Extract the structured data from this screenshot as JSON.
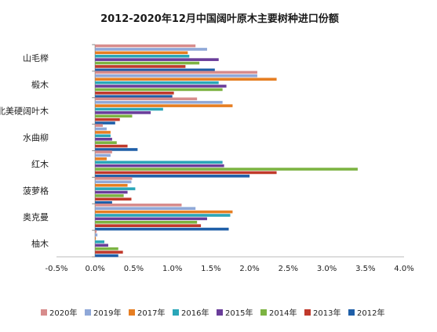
{
  "chart_data": {
    "type": "bar",
    "orientation": "horizontal",
    "title": "2012-2020年12月中国阔叶原木主要树种进口份额",
    "xlabel": "",
    "ylabel": "",
    "xlim": [
      -0.5,
      4.0
    ],
    "xticks": [
      "-0.5%",
      "0.0%",
      "0.5%",
      "1.0%",
      "1.5%",
      "2.0%",
      "2.5%",
      "3.0%",
      "3.5%",
      "4.0%"
    ],
    "grid": false,
    "legend_position": "bottom",
    "categories": [
      "山毛榉",
      "椴木",
      "北美硬阔叶木",
      "水曲柳",
      "红木",
      "菠萝格",
      "奥克曼",
      "柚木"
    ],
    "series": [
      {
        "name": "2020年",
        "color": "#d78c8c",
        "values": [
          1.3,
          2.1,
          1.32,
          0.1,
          0.22,
          0.48,
          1.12,
          0.02
        ]
      },
      {
        "name": "2019年",
        "color": "#8fa8d8",
        "values": [
          1.45,
          2.1,
          1.65,
          0.15,
          0.2,
          0.47,
          1.3,
          0.03
        ]
      },
      {
        "name": "2017年",
        "color": "#e67e22",
        "values": [
          1.2,
          2.35,
          1.78,
          0.2,
          0.15,
          0.42,
          1.78,
          0.01
        ]
      },
      {
        "name": "2016年",
        "color": "#2aa6b8",
        "values": [
          1.22,
          1.6,
          0.88,
          0.2,
          1.65,
          0.52,
          1.75,
          0.12
        ]
      },
      {
        "name": "2015年",
        "color": "#6a3d9a",
        "values": [
          1.6,
          1.7,
          0.72,
          0.22,
          1.67,
          0.42,
          1.45,
          0.17
        ]
      },
      {
        "name": "2014年",
        "color": "#7cb342",
        "values": [
          1.35,
          1.65,
          0.48,
          0.28,
          3.4,
          0.37,
          1.32,
          0.3
        ]
      },
      {
        "name": "2013年",
        "color": "#c0392b",
        "values": [
          1.17,
          1.02,
          0.32,
          0.42,
          2.35,
          0.47,
          1.37,
          0.36
        ]
      },
      {
        "name": "2012年",
        "color": "#1f5fa8",
        "values": [
          1.55,
          1.0,
          0.26,
          0.55,
          2.0,
          0.22,
          1.73,
          0.3
        ]
      }
    ]
  }
}
